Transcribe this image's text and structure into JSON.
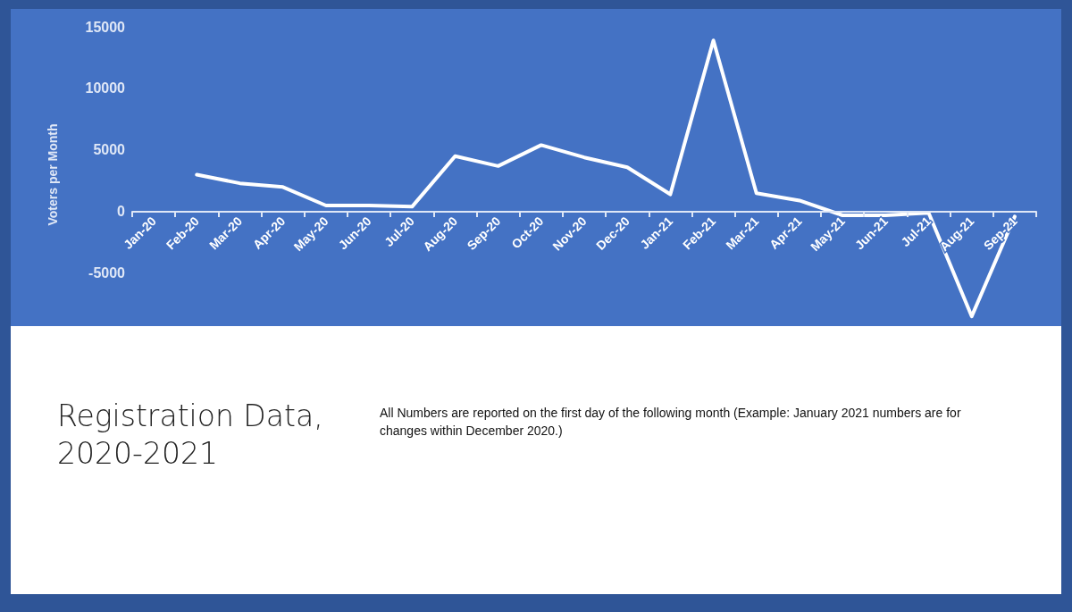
{
  "chart_data": {
    "type": "line",
    "title": "Registration Data, 2020-2021",
    "ylabel": "Voters per Month",
    "annotations": [
      "All Numbers are reported on the first day of the following month (Example: January 2021 numbers are for changes within December 2020.)"
    ],
    "categories": [
      "Jan-20",
      "Feb-20",
      "Mar-20",
      "Apr-20",
      "May-20",
      "Jun-20",
      "Jul-20",
      "Aug-20",
      "Sep-20",
      "Oct-20",
      "Nov-20",
      "Dec-20",
      "Jan-21",
      "Feb-21",
      "Mar-21",
      "Apr-21",
      "May-21",
      "Jun-21",
      "Jul-21",
      "Aug-21",
      "Sep-21"
    ],
    "values": [
      null,
      3000,
      2300,
      2000,
      500,
      500,
      400,
      4500,
      3700,
      5400,
      4400,
      3600,
      1400,
      13900,
      1500,
      900,
      -300,
      -300,
      -100,
      -8500,
      -400
    ],
    "color": "#ffffff",
    "ylim": [
      -9000,
      15000
    ],
    "yticks": [
      -5000,
      0,
      5000,
      10000,
      15000
    ],
    "grid": false,
    "marker": "none",
    "line_style": "solid"
  }
}
